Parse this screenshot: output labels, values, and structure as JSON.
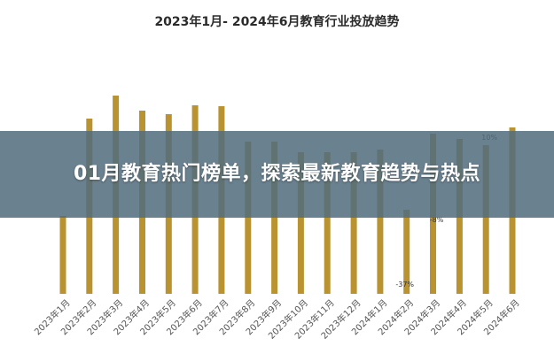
{
  "chart_data": {
    "type": "bar",
    "title": "2023年1月- 2024年6月教育行业投放趋势",
    "categories": [
      "2023年1月",
      "2023年2月",
      "2023年3月",
      "2023年4月",
      "2023年5月",
      "2023年6月",
      "2023年7月",
      "2023年8月",
      "2023年9月",
      "2023年10月",
      "2023年11月",
      "2023年12月",
      "2024年1月",
      "2024年2月",
      "2024年3月",
      "2024年4月",
      "2024年5月",
      "2024年6月"
    ],
    "values": [
      88,
      198,
      224,
      207,
      203,
      213,
      212,
      172,
      172,
      160,
      160,
      160,
      163,
      95,
      181,
      175,
      168,
      188
    ],
    "annotations": [
      {
        "category": "2024年2月",
        "text": "-37%"
      },
      {
        "category": "2024年3月",
        "text": "-8%"
      },
      {
        "category": "2024年5月",
        "text": "10%"
      }
    ],
    "ylim": [
      0,
      250
    ],
    "bar_color": "#b89330",
    "grid": false,
    "xlabel": "",
    "ylabel": ""
  },
  "banner": {
    "text": "01月教育热门榜单，探索最新教育趋势与热点",
    "background": "#526c7d"
  }
}
